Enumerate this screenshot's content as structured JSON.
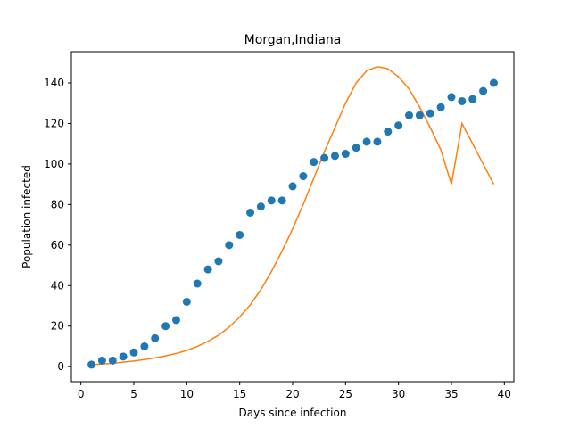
{
  "chart_data": {
    "type": "scatter",
    "title": "Morgan,Indiana",
    "xlabel": "Days since infection",
    "ylabel": "Population infected",
    "xlim": [
      -0.9,
      40.9
    ],
    "ylim": [
      -7.4,
      155.4
    ],
    "xticks": [
      0,
      5,
      10,
      15,
      20,
      25,
      30,
      35,
      40
    ],
    "yticks": [
      0,
      20,
      40,
      60,
      80,
      100,
      120,
      140
    ],
    "grid": false,
    "series": [
      {
        "kind": "scatter",
        "color": "#1f77b4",
        "x": [
          1,
          2,
          3,
          4,
          5,
          6,
          7,
          8,
          9,
          10,
          11,
          12,
          13,
          14,
          15,
          16,
          17,
          18,
          19,
          20,
          21,
          22,
          23,
          24,
          25,
          26,
          27,
          28,
          29,
          30,
          31,
          32,
          33,
          34,
          35,
          36,
          37,
          38,
          39
        ],
        "y": [
          1,
          3,
          3,
          5,
          7,
          10,
          14,
          20,
          23,
          32,
          41,
          48,
          52,
          60,
          65,
          76,
          79,
          82,
          82,
          89,
          94,
          101,
          103,
          104,
          105,
          108,
          111,
          111,
          116,
          119,
          124,
          124,
          125,
          128,
          133,
          131,
          132,
          136,
          140
        ]
      },
      {
        "kind": "line",
        "color": "#ff7f0e",
        "x": [
          1,
          2,
          3,
          4,
          5,
          6,
          7,
          8,
          9,
          10,
          11,
          12,
          13,
          14,
          15,
          16,
          17,
          18,
          19,
          20,
          21,
          22,
          23,
          24,
          25,
          26,
          27,
          28,
          29,
          30,
          31,
          32,
          33,
          34,
          35,
          36,
          37,
          38,
          39
        ],
        "y": [
          1,
          1.3,
          1.7,
          2.2,
          2.8,
          3.5,
          4.3,
          5.3,
          6.5,
          8,
          10,
          12.5,
          15.5,
          19.5,
          24.5,
          30.5,
          38,
          47,
          57,
          68,
          80,
          93,
          106,
          118,
          130,
          140,
          146,
          148,
          147,
          143,
          137,
          128,
          118,
          107,
          90,
          120,
          110,
          100,
          90
        ]
      }
    ]
  }
}
